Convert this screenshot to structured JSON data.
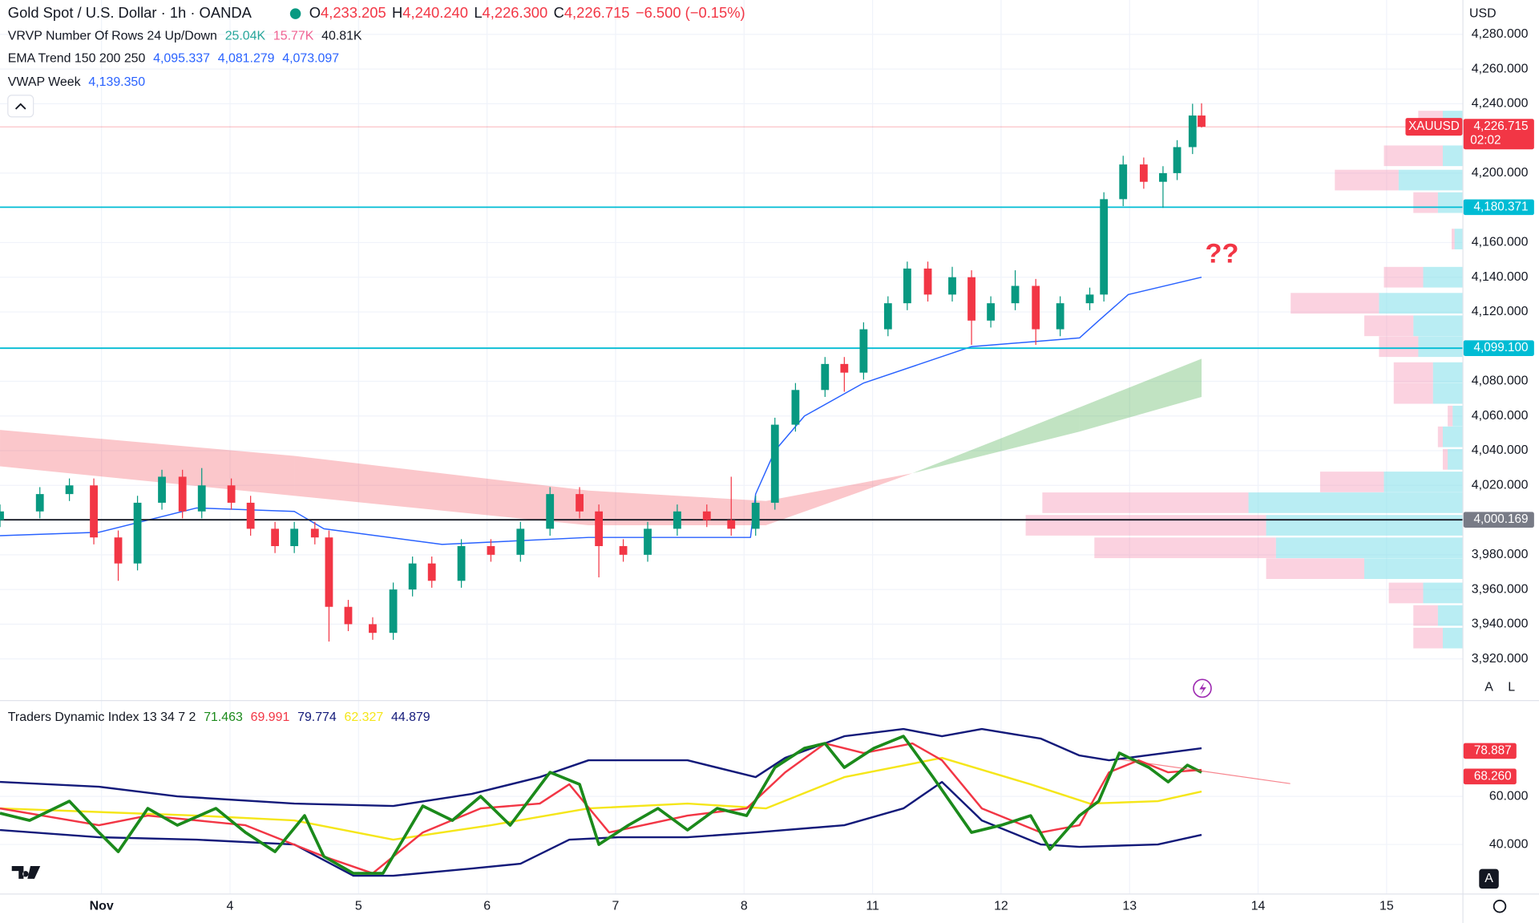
{
  "header": {
    "title": "Gold Spot / U.S. Dollar · 1h · OANDA",
    "ohlc": [
      {
        "key": "O",
        "value": "4,233.205"
      },
      {
        "key": "H",
        "value": "4,240.240"
      },
      {
        "key": "L",
        "value": "4,226.300"
      },
      {
        "key": "C",
        "value": "4,226.715"
      }
    ],
    "change": "−6.500 (−0.15%)",
    "currency": "USD"
  },
  "indicators": [
    {
      "name": "VRVP Number Of Rows 24 Up/Down",
      "values": [
        "25.04K",
        "15.77K",
        "40.81K"
      ],
      "colors": [
        "#26a69a",
        "#f06292",
        "#131722"
      ]
    },
    {
      "name": "EMA Trend 150 200 250",
      "values": [
        "4,095.337",
        "4,081.279",
        "4,073.097"
      ],
      "colors": [
        "#2962ff",
        "#2962ff",
        "#2962ff"
      ]
    },
    {
      "name": "VWAP Week",
      "values": [
        "4,139.350"
      ],
      "colors": [
        "#2962ff"
      ]
    },
    {
      "name": "Traders Dynamic Index 13 34 7 2",
      "values": [
        "71.463",
        "69.991",
        "79.774",
        "62.327",
        "44.879"
      ],
      "colors": [
        "#1b8a1b",
        "#f23645",
        "#131a7a",
        "#f5e61a",
        "#131a7a"
      ]
    }
  ],
  "chart_data": [
    {
      "type": "candlestick",
      "symbol": "XAUUSD",
      "up_color": "#089981",
      "down_color": "#f23645",
      "xlim": [
        -0.79,
        10.59
      ],
      "xticks": [
        {
          "value": 0,
          "label": "Nov"
        },
        {
          "value": 1,
          "label": "4"
        },
        {
          "value": 2,
          "label": "5"
        },
        {
          "value": 3,
          "label": "6"
        },
        {
          "value": 4,
          "label": "7"
        },
        {
          "value": 5,
          "label": "8"
        },
        {
          "value": 6,
          "label": "11"
        },
        {
          "value": 7,
          "label": "12"
        },
        {
          "value": 8,
          "label": "13"
        },
        {
          "value": 9,
          "label": "14"
        },
        {
          "value": 10,
          "label": "15"
        }
      ],
      "ylim": [
        3896.8,
        4299.8
      ],
      "yticks": [
        {
          "value": 3920,
          "label": "3,920.000"
        },
        {
          "value": 3940,
          "label": "3,940.000"
        },
        {
          "value": 3960,
          "label": "3,960.000"
        },
        {
          "value": 3980,
          "label": "3,980.000"
        },
        {
          "value": 4020,
          "label": "4,020.000"
        },
        {
          "value": 4040,
          "label": "4,040.000"
        },
        {
          "value": 4060,
          "label": "4,060.000"
        },
        {
          "value": 4080,
          "label": "4,080.000"
        },
        {
          "value": 4120,
          "label": "4,120.000"
        },
        {
          "value": 4140,
          "label": "4,140.000"
        },
        {
          "value": 4160,
          "label": "4,160.000"
        },
        {
          "value": 4200,
          "label": "4,200.000"
        },
        {
          "value": 4240,
          "label": "4,240.000"
        },
        {
          "value": 4260,
          "label": "4,260.000"
        },
        {
          "value": 4280,
          "label": "4,280.000"
        }
      ],
      "x": [
        -0.79,
        -0.48,
        -0.25,
        -0.06,
        0.13,
        0.28,
        0.47,
        0.63,
        0.78,
        1.01,
        1.16,
        1.35,
        1.5,
        1.66,
        1.77,
        1.92,
        2.11,
        2.27,
        2.42,
        2.57,
        2.8,
        3.03,
        3.26,
        3.49,
        3.72,
        3.87,
        4.06,
        4.25,
        4.48,
        4.71,
        4.9,
        5.09,
        5.24,
        5.4,
        5.63,
        5.78,
        5.93,
        6.12,
        6.27,
        6.43,
        6.62,
        6.77,
        6.92,
        7.11,
        7.27,
        7.46,
        7.69,
        7.8,
        7.95,
        8.11,
        8.26,
        8.37,
        8.49,
        8.56
      ],
      "ohlc": [
        [
          4000,
          4009,
          3996,
          4005
        ],
        [
          4005,
          4019,
          4001,
          4015
        ],
        [
          4015,
          4024,
          4011,
          4020
        ],
        [
          4020,
          4024,
          3986,
          3990
        ],
        [
          3990,
          3994,
          3965,
          3975
        ],
        [
          3975,
          4014,
          3971,
          4010
        ],
        [
          4010,
          4029,
          4006,
          4025
        ],
        [
          4025,
          4029,
          4001,
          4005
        ],
        [
          4005,
          4030,
          4001,
          4020
        ],
        [
          4020,
          4024,
          4006,
          4010
        ],
        [
          4010,
          4014,
          3991,
          3995
        ],
        [
          3995,
          3999,
          3981,
          3985
        ],
        [
          3985,
          3999,
          3981,
          3995
        ],
        [
          3995,
          3999,
          3986,
          3990
        ],
        [
          3990,
          3994,
          3930,
          3950
        ],
        [
          3950,
          3954,
          3936,
          3940
        ],
        [
          3940,
          3944,
          3931,
          3935
        ],
        [
          3935,
          3964,
          3931,
          3960
        ],
        [
          3960,
          3979,
          3956,
          3975
        ],
        [
          3975,
          3979,
          3961,
          3965
        ],
        [
          3965,
          3989,
          3961,
          3985
        ],
        [
          3985,
          3989,
          3976,
          3980
        ],
        [
          3980,
          3999,
          3976,
          3995
        ],
        [
          3995,
          4019,
          3991,
          4015
        ],
        [
          4015,
          4019,
          4001,
          4005
        ],
        [
          4005,
          4009,
          3967,
          3985
        ],
        [
          3985,
          3989,
          3976,
          3980
        ],
        [
          3980,
          3999,
          3976,
          3995
        ],
        [
          3995,
          4009,
          3991,
          4005
        ],
        [
          4005,
          4009,
          3996,
          4000
        ],
        [
          4000,
          4025,
          3991,
          3995
        ],
        [
          3995,
          4014,
          3991,
          4010
        ],
        [
          4010,
          4059,
          4006,
          4055
        ],
        [
          4055,
          4079,
          4051,
          4075
        ],
        [
          4075,
          4094,
          4071,
          4090
        ],
        [
          4090,
          4094,
          4074,
          4085
        ],
        [
          4085,
          4114,
          4081,
          4110
        ],
        [
          4110,
          4129,
          4106,
          4125
        ],
        [
          4125,
          4149,
          4121,
          4145
        ],
        [
          4145,
          4149,
          4126,
          4130
        ],
        [
          4130,
          4146,
          4126,
          4140
        ],
        [
          4140,
          4144,
          4101,
          4115
        ],
        [
          4115,
          4129,
          4111,
          4125
        ],
        [
          4125,
          4144,
          4121,
          4135
        ],
        [
          4135,
          4139,
          4101,
          4110
        ],
        [
          4110,
          4129,
          4106,
          4125
        ],
        [
          4125,
          4134,
          4121,
          4130
        ],
        [
          4130,
          4189,
          4126,
          4185
        ],
        [
          4185,
          4210,
          4181,
          4205
        ],
        [
          4205,
          4209,
          4191,
          4195
        ],
        [
          4195,
          4204,
          4180,
          4200
        ],
        [
          4200,
          4219,
          4196,
          4215
        ],
        [
          4215,
          4240,
          4211,
          4233.205
        ],
        [
          4233.205,
          4240.24,
          4226.3,
          4226.715
        ]
      ],
      "ema_cloud": {
        "x": [
          -0.79,
          1.5,
          3.79,
          5.17,
          6.31,
          7.61,
          8.56
        ],
        "fast": [
          4031,
          4014,
          3997,
          3997,
          4027,
          4065,
          4093
        ],
        "slow": [
          4052,
          4037,
          4017,
          4011,
          4027,
          4051,
          4071
        ],
        "bear_color": "rgba(242,54,69,0.28)",
        "bull_color": "rgba(76,175,80,0.35)"
      },
      "vwap": {
        "color": "#2962ff",
        "x": [
          -0.79,
          -0.02,
          0.74,
          1.5,
          1.73,
          2.65,
          3.79,
          5.05,
          5.09,
          5.24,
          5.47,
          5.93,
          6.77,
          7.61,
          7.76,
          7.99,
          8.56
        ],
        "values": [
          3991,
          3993,
          4007,
          4005,
          3995,
          3986,
          3990,
          3990,
          4015,
          4040,
          4060,
          4079,
          4100,
          4105,
          4115,
          4130,
          4140
        ]
      },
      "levels": [
        {
          "value": 4180.371,
          "label": "4,180.371",
          "color": "#00bcd4"
        },
        {
          "value": 4099.1,
          "label": "4,099.100",
          "color": "#00bcd4"
        },
        {
          "value": 4000.169,
          "label": "4,000.169",
          "color": "#131722"
        }
      ],
      "last_price": {
        "value": 4226.715,
        "label": "4,226.715",
        "countdown": "02:02",
        "color": "#f23645"
      },
      "volume_profile": {
        "up_color": "rgba(128,222,234,0.55)",
        "down_color": "rgba(244,143,177,0.4)",
        "prices": [
          4230,
          4210,
          4196,
          4183,
          4162,
          4140,
          4125,
          4112,
          4100,
          4085,
          4073,
          4060,
          4048,
          4035,
          4022,
          4010,
          3997,
          3984,
          3972,
          3958,
          3945,
          3932
        ],
        "up": [
          0.2,
          0.2,
          0.65,
          0.25,
          0.08,
          0.4,
          0.85,
          0.5,
          0.45,
          0.3,
          0.3,
          0.1,
          0.2,
          0.15,
          0.8,
          2.18,
          2.0,
          1.9,
          1.0,
          0.4,
          0.25,
          0.2
        ],
        "down": [
          0.25,
          0.6,
          0.65,
          0.25,
          0.03,
          0.4,
          0.9,
          0.5,
          0.4,
          0.4,
          0.4,
          0.05,
          0.05,
          0.05,
          0.65,
          2.1,
          2.45,
          1.85,
          1.0,
          0.35,
          0.25,
          0.3
        ]
      },
      "annotation": "??"
    },
    {
      "type": "line",
      "ylim": [
        19.6,
        99.2
      ],
      "yticks": [
        {
          "value": 40,
          "label": "40.000"
        },
        {
          "value": 60,
          "label": "60.000"
        }
      ],
      "series": [
        {
          "color": "#131a7a",
          "x": [
            -0.79,
            -0.02,
            0.59,
            1.5,
            2.27,
            2.88,
            3.41,
            3.79,
            4.56,
            5.09,
            5.32,
            5.78,
            6.24,
            6.54,
            6.85,
            7.31,
            7.61,
            7.84,
            8.56
          ],
          "values": [
            66,
            64,
            60,
            57,
            56,
            61,
            68,
            75,
            75,
            68,
            76,
            85,
            88,
            85,
            88,
            84,
            77,
            75,
            80
          ]
        },
        {
          "color": "#131a7a",
          "x": [
            -0.79,
            -0.02,
            0.74,
            1.5,
            1.96,
            2.27,
            2.88,
            3.26,
            3.64,
            4.02,
            4.56,
            5.09,
            5.78,
            6.24,
            6.54,
            6.85,
            7.31,
            7.61,
            8.22,
            8.56
          ],
          "values": [
            46,
            43,
            42,
            40,
            27,
            27,
            30,
            32,
            42,
            43,
            43,
            45,
            48,
            55,
            66,
            50,
            40,
            39,
            40,
            44
          ]
        },
        {
          "color": "#f5e61a",
          "x": [
            -0.79,
            0.74,
            1.5,
            2.27,
            3.03,
            3.79,
            4.56,
            5.17,
            5.78,
            6.54,
            7.23,
            7.69,
            8.22,
            8.56
          ],
          "values": [
            55,
            52,
            50,
            42,
            48,
            55,
            57,
            55,
            68,
            76,
            65,
            57,
            58,
            62
          ]
        },
        {
          "color": "#f23645",
          "x": [
            -0.79,
            -0.02,
            0.36,
            1.12,
            1.73,
            2.11,
            2.5,
            2.95,
            3.41,
            3.64,
            3.95,
            4.56,
            5.02,
            5.32,
            5.63,
            5.93,
            6.31,
            6.54,
            6.85,
            7.31,
            7.61,
            7.84,
            8.07,
            8.3,
            8.56
          ],
          "values": [
            55,
            48,
            52,
            48,
            35,
            28,
            45,
            55,
            57,
            65,
            45,
            52,
            55,
            70,
            82,
            78,
            82,
            75,
            55,
            45,
            48,
            70,
            75,
            70,
            71
          ]
        },
        {
          "color": "#1b8a1b",
          "x": [
            -0.79,
            -0.56,
            -0.25,
            -0.02,
            0.13,
            0.36,
            0.59,
            0.89,
            1.12,
            1.35,
            1.58,
            1.73,
            1.96,
            2.19,
            2.5,
            2.73,
            2.95,
            3.18,
            3.49,
            3.72,
            3.87,
            4.1,
            4.33,
            4.56,
            4.79,
            5.02,
            5.24,
            5.47,
            5.63,
            5.78,
            6.01,
            6.24,
            6.47,
            6.77,
            7.0,
            7.23,
            7.38,
            7.61,
            7.76,
            7.92,
            8.15,
            8.3,
            8.45,
            8.56
          ],
          "values": [
            53,
            50,
            58,
            45,
            37,
            55,
            48,
            55,
            45,
            37,
            52,
            35,
            28,
            28,
            56,
            50,
            60,
            48,
            70,
            65,
            40,
            48,
            55,
            46,
            55,
            52,
            72,
            80,
            82,
            72,
            80,
            85,
            68,
            45,
            48,
            52,
            38,
            52,
            58,
            78,
            72,
            66,
            73,
            70
          ]
        }
      ],
      "trendline": {
        "color": "rgba(242,54,69,0.6)",
        "x": [
          7.92,
          9.25
        ],
        "values": [
          75.4,
          65.3
        ]
      },
      "markers": [
        {
          "value": 78.887,
          "label": "78.887",
          "color": "#f23645"
        },
        {
          "value": 68.26,
          "label": "68.260",
          "color": "#f23645"
        }
      ]
    }
  ]
}
